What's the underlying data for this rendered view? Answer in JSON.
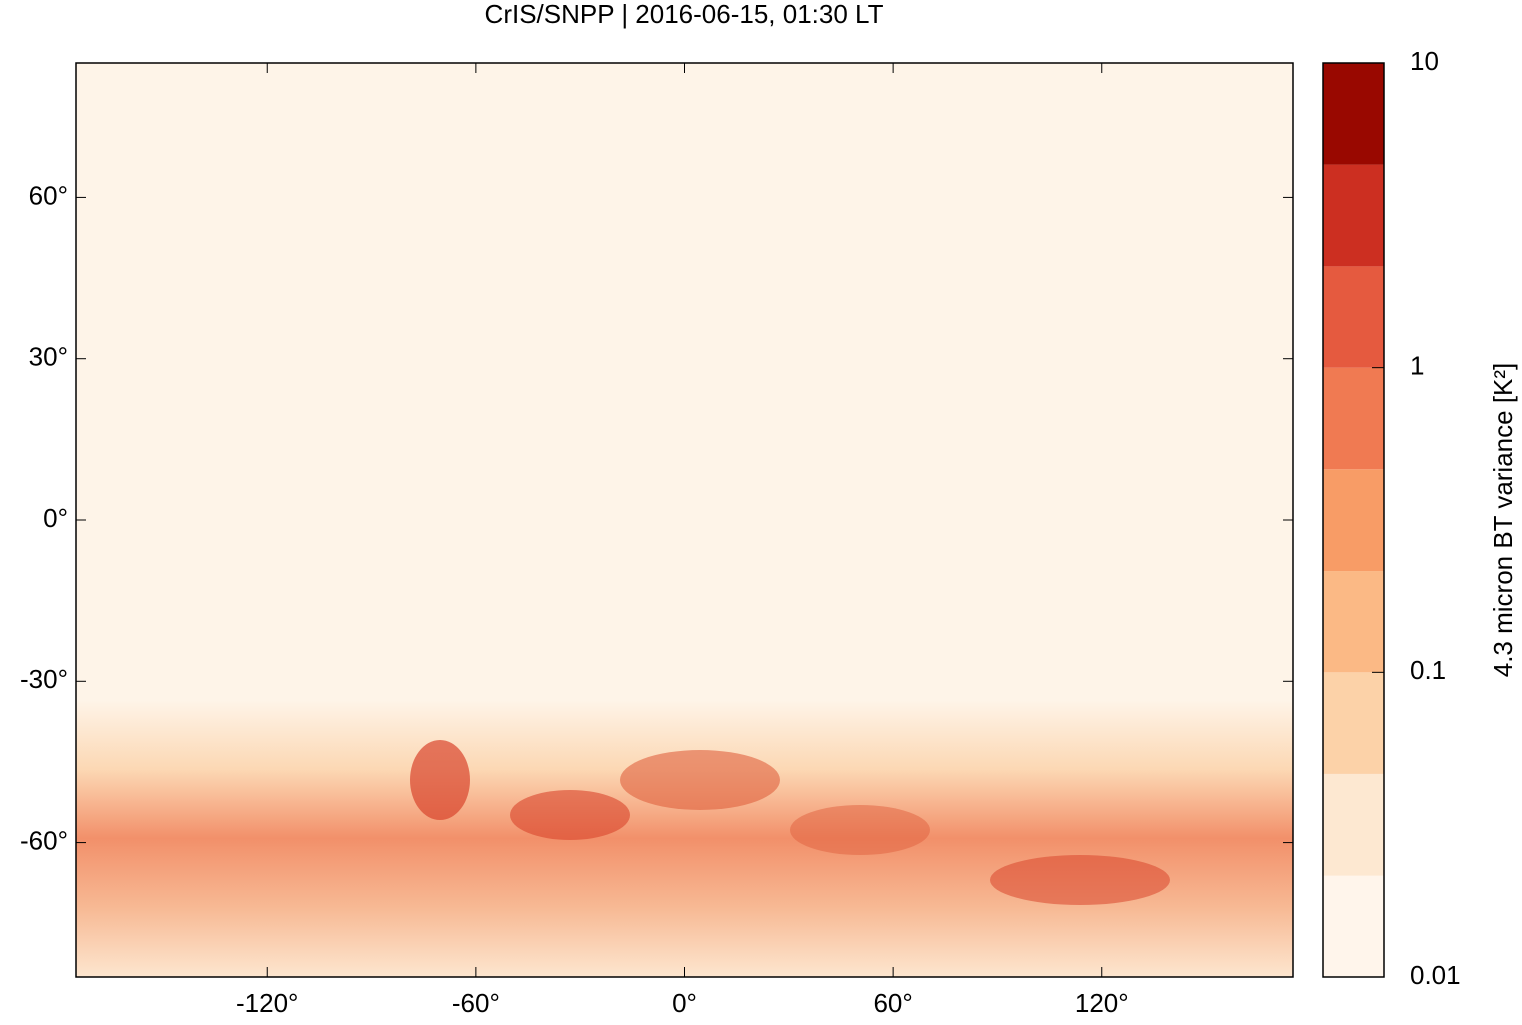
{
  "chart_data": {
    "type": "map",
    "title": "CrIS/SNPP | 2016-06-15, 01:30 LT",
    "xlim": [
      -175,
      175
    ],
    "ylim": [
      -85,
      85
    ],
    "xticks": [
      {
        "value": -120,
        "label": "-120°"
      },
      {
        "value": -60,
        "label": "-60°"
      },
      {
        "value": 0,
        "label": "0°"
      },
      {
        "value": 60,
        "label": "60°"
      },
      {
        "value": 120,
        "label": "120°"
      }
    ],
    "yticks": [
      {
        "value": -60,
        "label": "-60°"
      },
      {
        "value": -30,
        "label": "-30°"
      },
      {
        "value": 0,
        "label": "0°"
      },
      {
        "value": 30,
        "label": "30°"
      },
      {
        "value": 60,
        "label": "60°"
      }
    ],
    "colorbar": {
      "label": "4.3 micron BT variance [K²]",
      "log": true,
      "lim": [
        0.01,
        10
      ],
      "levels": [
        0.01,
        0.0215,
        0.0464,
        0.1,
        0.215,
        0.464,
        1,
        2.15,
        4.64,
        10
      ],
      "colors": [
        "#fff5eb",
        "#fde8d1",
        "#fcd2a8",
        "#fbb985",
        "#f89c66",
        "#f07a52",
        "#e55a3f",
        "#cc2f21",
        "#990800"
      ],
      "ticks": [
        0.01,
        0.1,
        1,
        10
      ]
    }
  }
}
